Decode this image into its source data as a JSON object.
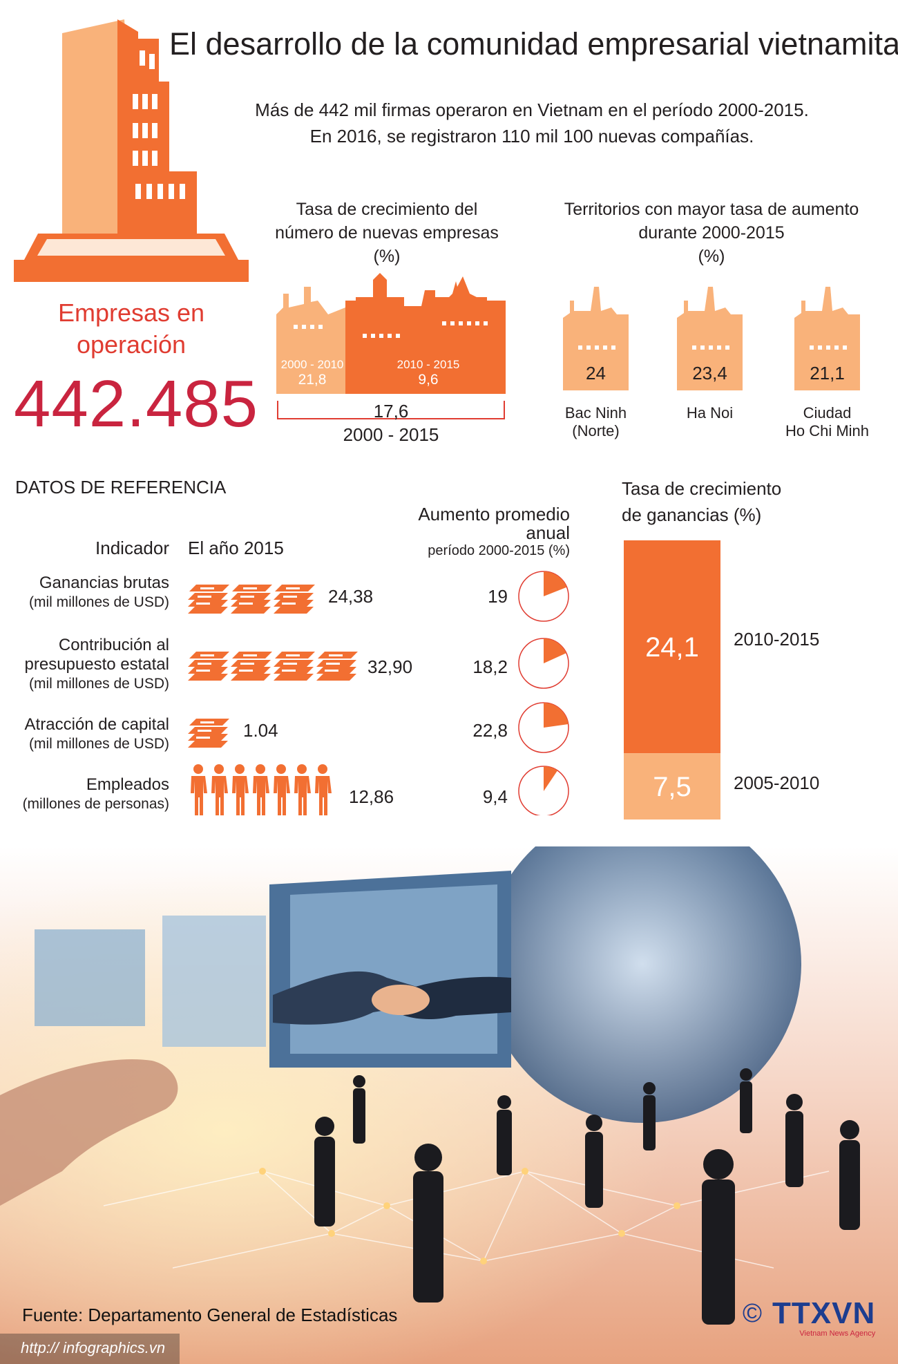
{
  "title": "El desarrollo de la comunidad empresarial vietnamita",
  "intro": {
    "line1": "Más de 442 mil firmas operaron en Vietnam en el período 2000-2015.",
    "line2": "En 2016, se registraron 110  mil 100 nuevas compañías."
  },
  "operating": {
    "label_line1": "Empresas en",
    "label_line2": "operación",
    "value": "442.485"
  },
  "growth_new": {
    "title_line1": "Tasa de crecimiento del",
    "title_line2": "número de nuevas empresas",
    "unit": "(%)",
    "periods": [
      {
        "period": "2000 - 2010",
        "value": "21,8"
      },
      {
        "period": "2010 - 2015",
        "value": "9,6"
      }
    ],
    "total_value": "17,6",
    "total_period": "2000 - 2015"
  },
  "territories": {
    "title_line1": "Territorios con mayor tasa de aumento",
    "title_line2": "durante 2000-2015",
    "unit": "(%)",
    "items": [
      {
        "value": "24",
        "name_line1": "Bac Ninh",
        "name_line2": "(Norte)"
      },
      {
        "value": "23,4",
        "name_line1": "Ha Noi",
        "name_line2": ""
      },
      {
        "value": "21,1",
        "name_line1": "Ciudad",
        "name_line2": "Ho Chi Minh"
      }
    ]
  },
  "reference": {
    "heading": "DATOS DE REFERENCIA",
    "col_indicator": "Indicador",
    "col_year": "El año 2015",
    "col_avg_line1": "Aumento promedio",
    "col_avg_line2": "anual",
    "col_avg_line3": "período 2000-2015 (%)",
    "rows": [
      {
        "label_line1": "Ganancias brutas",
        "label_line2": "",
        "label_unit": "(mil millones de USD)",
        "value": "24,38",
        "rate": "19",
        "rate_num": 19
      },
      {
        "label_line1": "Contribución al",
        "label_line2": "presupuesto estatal",
        "label_unit": "(mil millones de USD)",
        "value": "32,90",
        "rate": "18,2",
        "rate_num": 18.2
      },
      {
        "label_line1": "Atracción de capital",
        "label_line2": "",
        "label_unit": "(mil millones de USD)",
        "value": "1.04",
        "rate": "22,8",
        "rate_num": 22.8
      },
      {
        "label_line1": "Empleados",
        "label_line2": "",
        "label_unit": "(millones de personas)",
        "value": "12,86",
        "rate": "9,4",
        "rate_num": 9.4
      }
    ]
  },
  "profit_growth": {
    "title_line1": "Tasa de crecimiento",
    "title_line2": "de ganancias (%)",
    "segments": [
      {
        "period": "2010-2015",
        "value": "24,1",
        "num": 24.1,
        "color": "#f26f32"
      },
      {
        "period": "2005-2010",
        "value": "7,5",
        "num": 7.5,
        "color": "#f9b27a"
      }
    ]
  },
  "colors": {
    "orange": "#f26f32",
    "light_orange": "#f9b27a",
    "red_number": "#c9243f",
    "red_label": "#e03c31"
  },
  "footer": {
    "source": "Fuente: Departamento General de Estadísticas",
    "url": "http:// infographics.vn",
    "copyright": "©",
    "agency": "TTXVN",
    "agency_sub": "Vietnam News Agency"
  }
}
